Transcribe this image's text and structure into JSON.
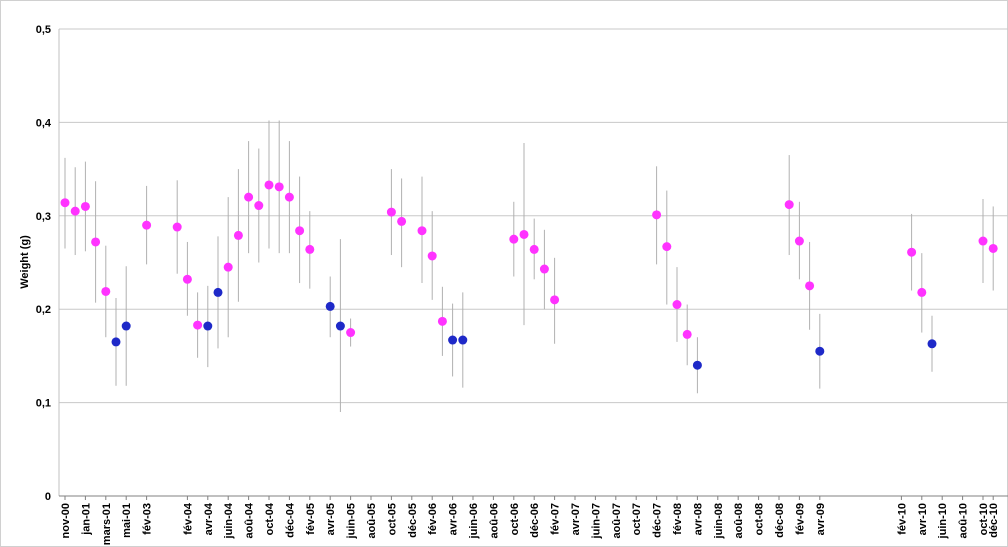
{
  "chart_data": {
    "type": "scatter",
    "title": "",
    "xlabel": "",
    "ylabel": "Weight (g)",
    "ylim": [
      0,
      0.5
    ],
    "yticks": [
      "0",
      "0,1",
      "0,2",
      "0,3",
      "0,4",
      "0,5"
    ],
    "grid": true,
    "colors": {
      "magenta": "#ff33ff",
      "blue": "#1e29c8",
      "errorbar": "#b0b0b0",
      "grid": "#c8c8c8"
    },
    "x_tick_labels": [
      {
        "i": 0,
        "label": "nov-00"
      },
      {
        "i": 2,
        "label": "jan-01"
      },
      {
        "i": 4,
        "label": "mars-01"
      },
      {
        "i": 6,
        "label": "mai-01"
      },
      {
        "i": 8,
        "label": "fév-03"
      },
      {
        "i": 12,
        "label": "fév-04"
      },
      {
        "i": 14,
        "label": "avr-04"
      },
      {
        "i": 16,
        "label": "juin-04"
      },
      {
        "i": 18,
        "label": "aoû-04"
      },
      {
        "i": 20,
        "label": "oct-04"
      },
      {
        "i": 22,
        "label": "déc-04"
      },
      {
        "i": 24,
        "label": "fév-05"
      },
      {
        "i": 26,
        "label": "avr-05"
      },
      {
        "i": 28,
        "label": "juin-05"
      },
      {
        "i": 30,
        "label": "aoû-05"
      },
      {
        "i": 32,
        "label": "oct-05"
      },
      {
        "i": 34,
        "label": "déc-05"
      },
      {
        "i": 36,
        "label": "fév-06"
      },
      {
        "i": 38,
        "label": "avr-06"
      },
      {
        "i": 40,
        "label": "juin-06"
      },
      {
        "i": 42,
        "label": "aoû-06"
      },
      {
        "i": 44,
        "label": "oct-06"
      },
      {
        "i": 46,
        "label": "déc-06"
      },
      {
        "i": 48,
        "label": "fév-07"
      },
      {
        "i": 50,
        "label": "avr-07"
      },
      {
        "i": 52,
        "label": "juin-07"
      },
      {
        "i": 54,
        "label": "aoû-07"
      },
      {
        "i": 56,
        "label": "oct-07"
      },
      {
        "i": 58,
        "label": "déc-07"
      },
      {
        "i": 60,
        "label": "fév-08"
      },
      {
        "i": 62,
        "label": "avr-08"
      },
      {
        "i": 64,
        "label": "juin-08"
      },
      {
        "i": 66,
        "label": "aoû-08"
      },
      {
        "i": 68,
        "label": "oct-08"
      },
      {
        "i": 70,
        "label": "déc-08"
      },
      {
        "i": 72,
        "label": "fév-09"
      },
      {
        "i": 74,
        "label": "avr-09"
      },
      {
        "i": 82,
        "label": "fév-10"
      },
      {
        "i": 84,
        "label": "avr-10"
      },
      {
        "i": 86,
        "label": "juin-10"
      },
      {
        "i": 88,
        "label": "aoû-10"
      },
      {
        "i": 90,
        "label": "oct-10"
      },
      {
        "i": 91,
        "label": "déc-10"
      }
    ],
    "series": [
      {
        "color": "magenta",
        "points": [
          {
            "i": 0,
            "y": 0.314,
            "lo": 0.265,
            "hi": 0.362
          },
          {
            "i": 1,
            "y": 0.305,
            "lo": 0.258,
            "hi": 0.352
          },
          {
            "i": 2,
            "y": 0.31,
            "lo": 0.262,
            "hi": 0.358
          },
          {
            "i": 3,
            "y": 0.272,
            "lo": 0.207,
            "hi": 0.337
          },
          {
            "i": 4,
            "y": 0.219,
            "lo": 0.17,
            "hi": 0.268
          },
          {
            "i": 8,
            "y": 0.29,
            "lo": 0.248,
            "hi": 0.332
          },
          {
            "i": 11,
            "y": 0.288,
            "lo": 0.238,
            "hi": 0.338
          },
          {
            "i": 12,
            "y": 0.232,
            "lo": 0.193,
            "hi": 0.272
          },
          {
            "i": 13,
            "y": 0.183,
            "lo": 0.148,
            "hi": 0.218
          },
          {
            "i": 16,
            "y": 0.245,
            "lo": 0.17,
            "hi": 0.32
          },
          {
            "i": 17,
            "y": 0.279,
            "lo": 0.208,
            "hi": 0.35
          },
          {
            "i": 18,
            "y": 0.32,
            "lo": 0.26,
            "hi": 0.38
          },
          {
            "i": 19,
            "y": 0.311,
            "lo": 0.25,
            "hi": 0.372
          },
          {
            "i": 20,
            "y": 0.333,
            "lo": 0.265,
            "hi": 0.402
          },
          {
            "i": 21,
            "y": 0.331,
            "lo": 0.26,
            "hi": 0.402
          },
          {
            "i": 22,
            "y": 0.32,
            "lo": 0.26,
            "hi": 0.38
          },
          {
            "i": 23,
            "y": 0.284,
            "lo": 0.228,
            "hi": 0.342
          },
          {
            "i": 24,
            "y": 0.264,
            "lo": 0.222,
            "hi": 0.305
          },
          {
            "i": 28,
            "y": 0.175,
            "lo": 0.16,
            "hi": 0.19
          },
          {
            "i": 32,
            "y": 0.304,
            "lo": 0.258,
            "hi": 0.35
          },
          {
            "i": 33,
            "y": 0.294,
            "lo": 0.245,
            "hi": 0.34
          },
          {
            "i": 35,
            "y": 0.284,
            "lo": 0.228,
            "hi": 0.342
          },
          {
            "i": 36,
            "y": 0.257,
            "lo": 0.21,
            "hi": 0.305
          },
          {
            "i": 37,
            "y": 0.187,
            "lo": 0.15,
            "hi": 0.224
          },
          {
            "i": 44,
            "y": 0.275,
            "lo": 0.235,
            "hi": 0.315
          },
          {
            "i": 45,
            "y": 0.28,
            "lo": 0.183,
            "hi": 0.378
          },
          {
            "i": 46,
            "y": 0.264,
            "lo": 0.232,
            "hi": 0.297
          },
          {
            "i": 47,
            "y": 0.243,
            "lo": 0.2,
            "hi": 0.285
          },
          {
            "i": 48,
            "y": 0.21,
            "lo": 0.163,
            "hi": 0.255
          },
          {
            "i": 58,
            "y": 0.301,
            "lo": 0.248,
            "hi": 0.353
          },
          {
            "i": 59,
            "y": 0.267,
            "lo": 0.205,
            "hi": 0.327
          },
          {
            "i": 60,
            "y": 0.205,
            "lo": 0.165,
            "hi": 0.245
          },
          {
            "i": 61,
            "y": 0.173,
            "lo": 0.14,
            "hi": 0.205
          },
          {
            "i": 71,
            "y": 0.312,
            "lo": 0.258,
            "hi": 0.365
          },
          {
            "i": 72,
            "y": 0.273,
            "lo": 0.232,
            "hi": 0.315
          },
          {
            "i": 73,
            "y": 0.225,
            "lo": 0.178,
            "hi": 0.272
          },
          {
            "i": 83,
            "y": 0.261,
            "lo": 0.22,
            "hi": 0.302
          },
          {
            "i": 84,
            "y": 0.218,
            "lo": 0.175,
            "hi": 0.26
          },
          {
            "i": 90,
            "y": 0.273,
            "lo": 0.228,
            "hi": 0.318
          },
          {
            "i": 91,
            "y": 0.265,
            "lo": 0.22,
            "hi": 0.31
          }
        ]
      },
      {
        "color": "blue",
        "points": [
          {
            "i": 5,
            "y": 0.165,
            "lo": 0.118,
            "hi": 0.212
          },
          {
            "i": 6,
            "y": 0.182,
            "lo": 0.118,
            "hi": 0.246
          },
          {
            "i": 14,
            "y": 0.182,
            "lo": 0.138,
            "hi": 0.225
          },
          {
            "i": 15,
            "y": 0.218,
            "lo": 0.158,
            "hi": 0.278
          },
          {
            "i": 26,
            "y": 0.203,
            "lo": 0.17,
            "hi": 0.235
          },
          {
            "i": 27,
            "y": 0.182,
            "lo": 0.09,
            "hi": 0.275
          },
          {
            "i": 38,
            "y": 0.167,
            "lo": 0.128,
            "hi": 0.206
          },
          {
            "i": 39,
            "y": 0.167,
            "lo": 0.116,
            "hi": 0.218
          },
          {
            "i": 62,
            "y": 0.14,
            "lo": 0.11,
            "hi": 0.17
          },
          {
            "i": 74,
            "y": 0.155,
            "lo": 0.115,
            "hi": 0.195
          },
          {
            "i": 85,
            "y": 0.163,
            "lo": 0.133,
            "hi": 0.193
          }
        ]
      }
    ]
  }
}
